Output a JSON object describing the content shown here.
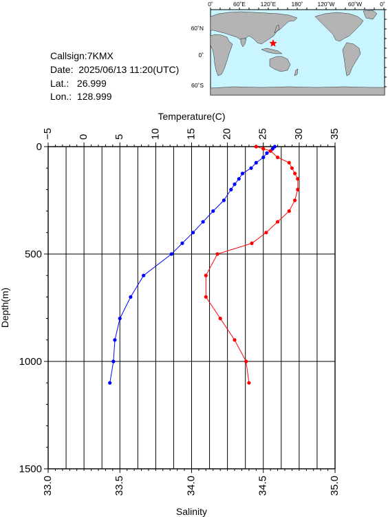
{
  "station": {
    "callsign": "Callsign:7KMX",
    "date": "Date:  2025/06/13 11:20(UTC)",
    "lat": "Lat.:   26.999",
    "lon": "Lon.:  128.999"
  },
  "map": {
    "top_labels": [
      "0˚",
      "60˚E",
      "120˚E",
      "180˚",
      "120˚W",
      "60˚W",
      "0˚"
    ],
    "lat_labels": [
      "60˚N",
      "0˚",
      "60˚S"
    ],
    "ocean_color": "#c8f5ff",
    "land_color": "#b4b4b4",
    "marker_icon": "star",
    "marker_color": "#ff0000"
  },
  "chart_data": {
    "type": "line",
    "ylabel": "Depth(m)",
    "y_ticks": [
      "0",
      "500",
      "1000",
      "1500"
    ],
    "ylim": [
      1500,
      0
    ],
    "temperature_axis": {
      "label": "Temperature(C)",
      "ticks": [
        "−5",
        "0",
        "5",
        "10",
        "15",
        "20",
        "25",
        "30",
        "35"
      ],
      "range": [
        -5,
        35
      ]
    },
    "salinity_axis": {
      "label": "Salinity",
      "ticks": [
        "33.0",
        "33.5",
        "34.0",
        "34.5",
        "35.0"
      ],
      "range": [
        33.0,
        35.0
      ]
    },
    "grid": true,
    "series": [
      {
        "color": "#0000ff",
        "axis": "temperature",
        "points": [
          {
            "depth": 0,
            "value": 26.6
          },
          {
            "depth": 10,
            "value": 26.3
          },
          {
            "depth": 20,
            "value": 26.0
          },
          {
            "depth": 30,
            "value": 25.5
          },
          {
            "depth": 50,
            "value": 25.0
          },
          {
            "depth": 75,
            "value": 24.0
          },
          {
            "depth": 100,
            "value": 23.3
          },
          {
            "depth": 125,
            "value": 22.1
          },
          {
            "depth": 150,
            "value": 21.6
          },
          {
            "depth": 175,
            "value": 21.0
          },
          {
            "depth": 200,
            "value": 20.5
          },
          {
            "depth": 250,
            "value": 19.5
          },
          {
            "depth": 300,
            "value": 18.0
          },
          {
            "depth": 350,
            "value": 16.6
          },
          {
            "depth": 400,
            "value": 15.2
          },
          {
            "depth": 450,
            "value": 13.7
          },
          {
            "depth": 500,
            "value": 12.2
          },
          {
            "depth": 600,
            "value": 8.3
          },
          {
            "depth": 700,
            "value": 6.5
          },
          {
            "depth": 800,
            "value": 5.0
          },
          {
            "depth": 900,
            "value": 4.3
          },
          {
            "depth": 1000,
            "value": 4.1
          },
          {
            "depth": 1100,
            "value": 3.6
          }
        ]
      },
      {
        "color": "#ff0000",
        "axis": "salinity",
        "points": [
          {
            "depth": 0,
            "value": 34.45
          },
          {
            "depth": 10,
            "value": 34.5
          },
          {
            "depth": 20,
            "value": 34.55
          },
          {
            "depth": 50,
            "value": 34.6
          },
          {
            "depth": 75,
            "value": 34.68
          },
          {
            "depth": 100,
            "value": 34.7
          },
          {
            "depth": 125,
            "value": 34.72
          },
          {
            "depth": 150,
            "value": 34.74
          },
          {
            "depth": 200,
            "value": 34.74
          },
          {
            "depth": 250,
            "value": 34.72
          },
          {
            "depth": 300,
            "value": 34.68
          },
          {
            "depth": 350,
            "value": 34.6
          },
          {
            "depth": 400,
            "value": 34.52
          },
          {
            "depth": 450,
            "value": 34.42
          },
          {
            "depth": 500,
            "value": 34.18
          },
          {
            "depth": 600,
            "value": 34.1
          },
          {
            "depth": 700,
            "value": 34.1
          },
          {
            "depth": 800,
            "value": 34.2
          },
          {
            "depth": 900,
            "value": 34.3
          },
          {
            "depth": 1000,
            "value": 34.38
          },
          {
            "depth": 1100,
            "value": 34.4
          }
        ]
      }
    ]
  }
}
